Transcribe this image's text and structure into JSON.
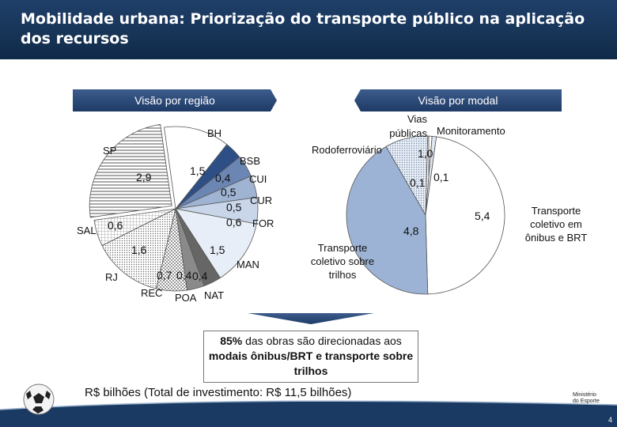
{
  "header": {
    "title": "Mobilidade urbana: Priorização do transporte público na aplicação dos recursos"
  },
  "banners": {
    "left": "Visão por região",
    "right": "Visão por modal"
  },
  "region_chart": {
    "labels": {
      "sp": "SP",
      "bh": "BH",
      "bsb": "BSB",
      "cui": "CUI",
      "cur": "CUR",
      "for": "FOR",
      "man": "MAN",
      "nat": "NAT",
      "poa": "POA",
      "rec": "REC",
      "rj": "RJ",
      "sal": "SAL"
    },
    "values": {
      "sp": "2,9",
      "bh": "1,5",
      "bsb": "0,4",
      "cui": "0,5",
      "cur": "0,5",
      "for": "0,6",
      "man": "1,5",
      "nat": "0,4",
      "poa": "0,4",
      "rec": "0,7",
      "rj": "1,6",
      "sal": "0,6"
    }
  },
  "modal_chart": {
    "labels": {
      "vias": "Vias públicas",
      "monitoramento": "Monitoramento",
      "rodoferroviario": "Rodoferroviário",
      "trilhos": "Transporte coletivo sobre trilhos",
      "onibus": "Transporte coletivo em ônibus e BRT"
    },
    "values": {
      "vias": "1,0",
      "monitoramento": "0,1",
      "rodoferroviario": "0,1",
      "trilhos": "4,8",
      "onibus": "5,4"
    }
  },
  "callout": {
    "highlight": "85%",
    "text_rest": " das obras são direcionadas aos ",
    "bold_line": "modais ônibus/BRT e transporte sobre trilhos"
  },
  "footer": {
    "text": "R$ bilhões (Total de investimento: R$ 11,5 bilhões)",
    "ministry_line1": "Ministério",
    "ministry_line2": "do Esporte",
    "page_number": "4"
  },
  "chart_data": [
    {
      "type": "pie",
      "title": "Visão por região",
      "categories": [
        "SP",
        "BH",
        "BSB",
        "CUI",
        "CUR",
        "FOR",
        "MAN",
        "NAT",
        "POA",
        "REC",
        "RJ",
        "SAL"
      ],
      "values": [
        2.9,
        1.5,
        0.4,
        0.5,
        0.5,
        0.6,
        1.5,
        0.4,
        0.4,
        0.7,
        1.6,
        0.6
      ]
    },
    {
      "type": "pie",
      "title": "Visão por modal",
      "categories": [
        "Vias públicas",
        "Monitoramento",
        "Rodoferroviário",
        "Transporte coletivo sobre trilhos",
        "Transporte coletivo em ônibus e BRT"
      ],
      "values": [
        1.0,
        0.1,
        0.1,
        4.8,
        5.4
      ]
    }
  ]
}
